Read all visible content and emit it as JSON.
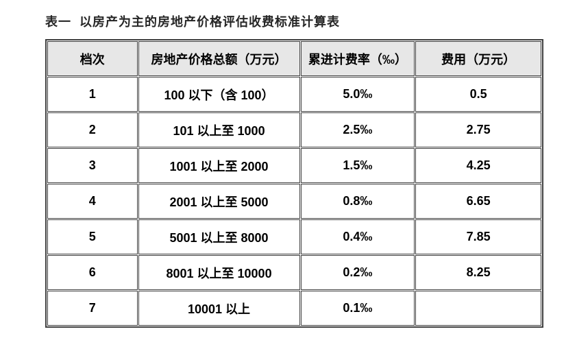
{
  "title": "表一  以房产为主的房地产价格评估收费标准计算表",
  "colors": {
    "header_bg": "#e7e7e7",
    "border": "#404040",
    "text": "#000000",
    "title": "#262626"
  },
  "table": {
    "headers": [
      "档次",
      "房地产价格总额（万元）",
      "累进计费率（‰）",
      "费用（万元）"
    ],
    "rows": [
      [
        "1",
        "100 以下（含 100）",
        "5.0‰",
        "0.5"
      ],
      [
        "2",
        "101 以上至 1000",
        "2.5‰",
        "2.75"
      ],
      [
        "3",
        "1001 以上至 2000",
        "1.5‰",
        "4.25"
      ],
      [
        "4",
        "2001 以上至 5000",
        "0.8‰",
        "6.65"
      ],
      [
        "5",
        "5001 以上至 8000",
        "0.4‰",
        "7.85"
      ],
      [
        "6",
        "8001 以上至 10000",
        "0.2‰",
        "8.25"
      ],
      [
        "7",
        "10001 以上",
        "0.1‰",
        ""
      ]
    ]
  }
}
